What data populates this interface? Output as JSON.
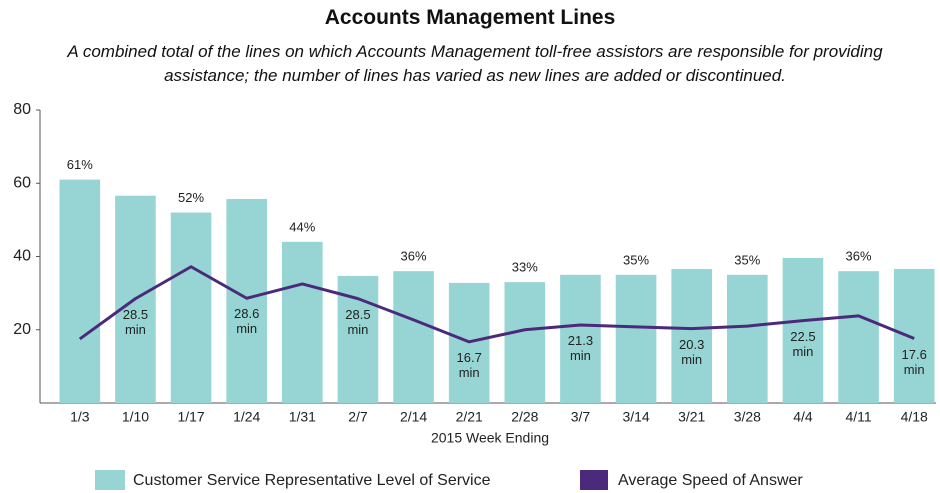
{
  "chart_data": {
    "type": "bar",
    "title": "Accounts Management Lines",
    "subtitle": "A combined total of the lines on which Accounts Management toll-free assistors are responsible for providing assistance; the number of lines has varied as new lines are added or discontinued.",
    "x_label": "2015 Week Ending",
    "categories": [
      "1/3",
      "1/10",
      "1/17",
      "1/24",
      "1/31",
      "2/7",
      "2/14",
      "2/21",
      "2/28",
      "3/7",
      "3/14",
      "3/21",
      "3/28",
      "4/4",
      "4/11",
      "4/18"
    ],
    "series": [
      {
        "name": "Customer Service Representative Level of Service",
        "type": "bar",
        "color": "#96d5d3",
        "values": [
          61,
          56.6,
          52,
          55.7,
          44,
          34.7,
          36,
          32.8,
          33,
          35,
          35,
          36.6,
          35,
          39.6,
          36,
          36.6
        ],
        "value_labels": [
          "61%",
          null,
          "52%",
          null,
          "44%",
          null,
          "36%",
          null,
          "33%",
          null,
          "35%",
          null,
          "35%",
          null,
          "36%",
          null
        ]
      },
      {
        "name": "Average Speed of Answer",
        "type": "line",
        "color": "#4b2a7b",
        "values": [
          17.5,
          28.5,
          37.2,
          28.6,
          32.5,
          28.5,
          22.7,
          16.7,
          20,
          21.3,
          20.8,
          20.3,
          21,
          22.5,
          23.8,
          17.6
        ],
        "value_labels": [
          null,
          "28.5 min",
          null,
          "28.6 min",
          null,
          "28.5 min",
          null,
          "16.7 min",
          null,
          "21.3 min",
          null,
          "20.3 min",
          null,
          "22.5 min",
          null,
          "17.6 min"
        ]
      }
    ],
    "ylim": [
      0,
      80
    ],
    "yticks": [
      20,
      40,
      60,
      80
    ],
    "grid": false
  }
}
